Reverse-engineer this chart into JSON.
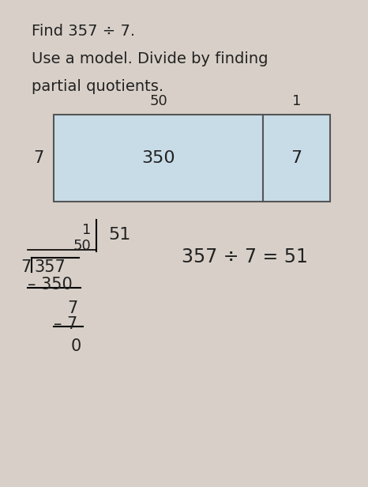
{
  "bg_color": "#d8d0c8",
  "title_line1": "Find 357 ÷ 7.",
  "title_line2": "Use a model. Divide by finding",
  "title_line3": "partial quotients.",
  "big_rect_color": "#c8dce8",
  "small_rect_color": "#c8dce8",
  "rect_edge_color": "#555555",
  "big_label": "350",
  "small_label": "7",
  "top_label_big": "50",
  "top_label_small": "1",
  "left_label": "7",
  "quotient_text": "51",
  "equation_text": "357 ÷ 7 = 51",
  "font_size_title": 12,
  "font_size_labels": 12,
  "font_size_longdiv": 13,
  "font_size_eq": 14
}
